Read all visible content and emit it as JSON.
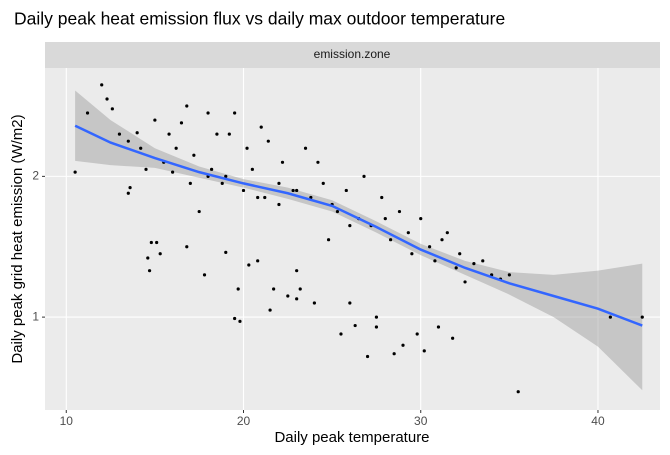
{
  "chart_data": {
    "type": "scatter",
    "title": "Daily peak heat emission flux vs daily max outdoor temperature",
    "facet": "emission.zone",
    "x_label": "Daily peak temperature",
    "y_label": "Daily peak grid heat emission (W/m2)",
    "xlim": [
      8.8,
      43.5
    ],
    "ylim": [
      0.34,
      2.77
    ],
    "xticks": [
      10,
      20,
      30,
      40
    ],
    "yticks": [
      1,
      2
    ],
    "grid": true,
    "series": [
      {
        "color": "#000000",
        "x": [
          10.5,
          11.2,
          12.0,
          12.3,
          12.6,
          13.0,
          13.5,
          13.5,
          13.6,
          14.0,
          14.2,
          14.5,
          14.6,
          14.7,
          14.8,
          15.0,
          15.1,
          15.3,
          15.5,
          15.8,
          16.0,
          16.2,
          16.5,
          16.8,
          16.8,
          17.0,
          17.2,
          17.5,
          17.8,
          18.0,
          18.2,
          18.5,
          18.8,
          19.0,
          19.2,
          19.5,
          19.5,
          19.7,
          19.8,
          20.0,
          20.2,
          20.3,
          20.5,
          20.8,
          21.0,
          21.2,
          21.4,
          21.5,
          21.7,
          22.0,
          22.2,
          22.5,
          22.8,
          23.0,
          23.0,
          23.2,
          23.5,
          23.8,
          24.0,
          24.2,
          24.5,
          25.0,
          25.3,
          25.5,
          25.8,
          26.0,
          26.3,
          26.5,
          26.8,
          27.0,
          27.2,
          27.5,
          27.5,
          27.8,
          28.0,
          28.3,
          28.5,
          28.8,
          29.0,
          29.3,
          29.5,
          29.8,
          30.0,
          30.2,
          30.5,
          30.8,
          31.0,
          31.2,
          31.5,
          31.8,
          32.0,
          32.2,
          32.5,
          33.0,
          33.5,
          34.0,
          34.5,
          35.0,
          35.5,
          40.7,
          42.5,
          19.0,
          20.8,
          24.8,
          26.0,
          23.0,
          18.0,
          22.0
        ],
        "values": [
          2.03,
          2.45,
          2.65,
          2.55,
          2.48,
          2.3,
          2.25,
          1.88,
          1.92,
          2.31,
          2.2,
          2.05,
          1.42,
          1.33,
          1.53,
          2.4,
          1.53,
          1.45,
          2.1,
          2.3,
          2.03,
          2.2,
          2.38,
          2.5,
          1.5,
          1.95,
          2.15,
          1.75,
          1.3,
          2.45,
          2.05,
          2.3,
          1.95,
          1.46,
          2.3,
          2.45,
          0.99,
          1.2,
          0.97,
          1.9,
          2.2,
          1.37,
          2.05,
          1.4,
          2.35,
          1.85,
          2.25,
          1.05,
          1.2,
          1.95,
          2.1,
          1.15,
          1.9,
          1.33,
          1.13,
          1.2,
          2.2,
          1.85,
          1.1,
          2.1,
          1.95,
          1.8,
          1.75,
          0.88,
          1.9,
          1.1,
          0.94,
          1.7,
          2.0,
          0.72,
          1.65,
          1.0,
          0.93,
          1.85,
          1.7,
          1.55,
          0.74,
          1.75,
          0.8,
          1.6,
          1.45,
          0.88,
          1.7,
          0.76,
          1.5,
          1.4,
          0.93,
          1.55,
          1.6,
          0.85,
          1.35,
          1.45,
          1.25,
          1.38,
          1.4,
          1.3,
          1.27,
          1.3,
          0.47,
          1.0,
          1.0,
          2.0,
          1.85,
          1.55,
          1.65,
          1.9,
          2.0,
          1.8
        ]
      }
    ],
    "smooth": {
      "color": "#3366ff",
      "ribbon_color": "#999999",
      "x": [
        10.5,
        12.5,
        15,
        17.5,
        20,
        22.5,
        25,
        27.5,
        30,
        32.5,
        35,
        37.5,
        40,
        42.5
      ],
      "values": [
        2.36,
        2.24,
        2.13,
        2.03,
        1.95,
        1.88,
        1.79,
        1.64,
        1.48,
        1.35,
        1.24,
        1.15,
        1.06,
        0.94
      ],
      "upper": [
        2.61,
        2.4,
        2.2,
        2.07,
        1.98,
        1.92,
        1.83,
        1.68,
        1.52,
        1.4,
        1.32,
        1.3,
        1.33,
        1.38
      ],
      "lower": [
        2.11,
        2.08,
        2.06,
        1.99,
        1.92,
        1.84,
        1.75,
        1.6,
        1.44,
        1.3,
        1.16,
        1.0,
        0.79,
        0.48
      ]
    }
  }
}
